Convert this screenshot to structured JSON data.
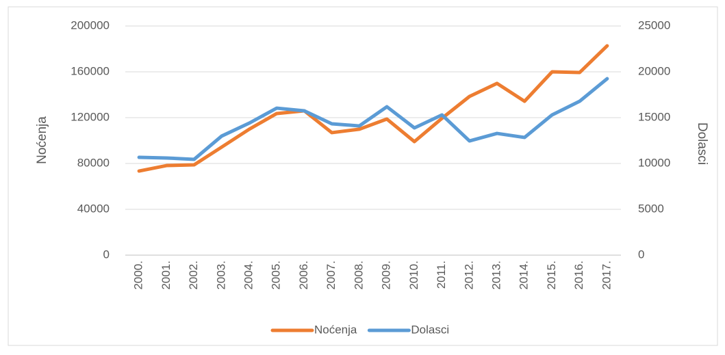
{
  "chart_data": {
    "type": "line",
    "categories": [
      "2000.",
      "2001.",
      "2002.",
      "2003.",
      "2004.",
      "2005.",
      "2006.",
      "2007.",
      "2008.",
      "2009.",
      "2010.",
      "2011.",
      "2012.",
      "2013.",
      "2014.",
      "2015.",
      "2016.",
      "2017."
    ],
    "y_label": "Noćenja",
    "y2_label": "Dolasci",
    "ylim": [
      0,
      200000
    ],
    "yticks": [
      0,
      40000,
      80000,
      120000,
      160000,
      200000
    ],
    "y2lim": [
      0,
      25000
    ],
    "y2ticks": [
      0,
      5000,
      10000,
      15000,
      20000,
      25000
    ],
    "grid": true,
    "legend": "bottom",
    "series": [
      {
        "name": "Noćenja",
        "color": "#ed7d31",
        "values": [
          73400,
          78200,
          78800,
          94300,
          109900,
          123600,
          126000,
          106900,
          109900,
          118800,
          99100,
          119400,
          138500,
          149900,
          134300,
          160000,
          159400,
          182700
        ]
      },
      {
        "name": "Dolasci",
        "color": "#5b9bd5",
        "axis": "y2",
        "values": [
          10670,
          10600,
          10450,
          12990,
          14400,
          16040,
          15750,
          14330,
          14100,
          16190,
          13880,
          15300,
          12460,
          13280,
          12840,
          15300,
          16790,
          19250
        ]
      }
    ]
  }
}
